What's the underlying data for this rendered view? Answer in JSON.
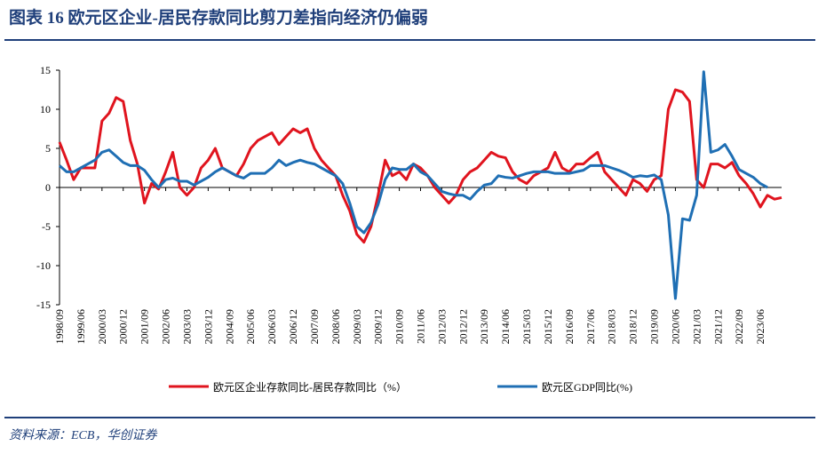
{
  "header": {
    "title": "图表 16   欧元区企业-居民存款同比剪刀差指向经济仍偏弱"
  },
  "chart_data": {
    "type": "line",
    "categories": [
      "1998/09",
      null,
      null,
      "1999/06",
      null,
      null,
      "2000/03",
      null,
      null,
      "2000/12",
      null,
      null,
      "2001/09",
      null,
      null,
      "2002/06",
      null,
      null,
      "2003/03",
      null,
      null,
      "2003/12",
      null,
      null,
      "2004/09",
      null,
      null,
      "2005/06",
      null,
      null,
      "2006/03",
      null,
      null,
      "2006/12",
      null,
      null,
      "2007/09",
      null,
      null,
      "2008/06",
      null,
      null,
      "2009/03",
      null,
      null,
      "2009/12",
      null,
      null,
      "2010/09",
      null,
      null,
      "2011/06",
      null,
      null,
      "2012/03",
      null,
      null,
      "2012/12",
      null,
      null,
      "2013/09",
      null,
      null,
      "2014/06",
      null,
      null,
      "2015/03",
      null,
      null,
      "2015/12",
      null,
      null,
      "2016/09",
      null,
      null,
      "2017/06",
      null,
      null,
      "2018/03",
      null,
      null,
      "2018/12",
      null,
      null,
      "2019/09",
      null,
      null,
      "2020/06",
      null,
      null,
      "2021/03",
      null,
      null,
      "2021/12",
      null,
      null,
      "2022/09",
      null,
      null,
      "2023/06",
      null,
      null,
      null
    ],
    "series": [
      {
        "name": "欧元区企业存款同比-居民存款同比（%）",
        "color": "#e0141e",
        "values": [
          5.8,
          3.5,
          1.0,
          2.5,
          2.5,
          2.5,
          8.5,
          9.5,
          11.5,
          11,
          6,
          3,
          -2,
          0.5,
          -0.2,
          2,
          4.5,
          0,
          -1,
          0,
          2.5,
          3.5,
          5,
          2.5,
          2,
          1.5,
          3,
          5,
          6,
          6.5,
          7,
          5.5,
          6.5,
          7.5,
          7,
          7.5,
          5,
          3.5,
          2.5,
          1.5,
          -1,
          -3,
          -6,
          -7,
          -5,
          -1,
          3.5,
          1.5,
          2,
          1,
          3,
          2.5,
          1.5,
          0,
          -1,
          -2,
          -1,
          1,
          2,
          2.5,
          3.5,
          4.5,
          4,
          3.8,
          2,
          1,
          0.5,
          1.5,
          2,
          2.5,
          4.5,
          2.5,
          2,
          3,
          3,
          3.8,
          4.5,
          2,
          1,
          0,
          -1,
          1,
          0.5,
          -0.5,
          1,
          1.5,
          10,
          12.5,
          12.2,
          11,
          1,
          0,
          3,
          3,
          2.5,
          3.2,
          1.5,
          0.5,
          -0.8,
          -2.5,
          -1,
          -1.5,
          -1.3
        ]
      },
      {
        "name": "欧元区GDP同比(%)",
        "color": "#1f6fb4",
        "values": [
          2.8,
          2.0,
          2.0,
          2.5,
          3.0,
          3.5,
          4.5,
          4.8,
          4.0,
          3.2,
          2.8,
          2.8,
          2.2,
          1.0,
          0.0,
          1.0,
          1.2,
          0.8,
          0.8,
          0.3,
          0.8,
          1.3,
          2.0,
          2.5,
          2.0,
          1.5,
          1.2,
          1.8,
          1.8,
          1.8,
          2.5,
          3.5,
          2.8,
          3.2,
          3.5,
          3.2,
          3.0,
          2.5,
          2.0,
          1.5,
          0.5,
          -2.0,
          -5.0,
          -5.8,
          -4.5,
          -2.2,
          1.0,
          2.5,
          2.3,
          2.3,
          3.0,
          2.0,
          1.5,
          0.5,
          -0.5,
          -0.8,
          -1.0,
          -1.0,
          -1.5,
          -0.5,
          0.3,
          0.5,
          1.5,
          1.3,
          1.2,
          1.5,
          1.8,
          2.0,
          2.0,
          2.0,
          1.8,
          1.8,
          1.8,
          2.0,
          2.2,
          2.8,
          2.8,
          2.8,
          2.5,
          2.2,
          1.8,
          1.3,
          1.5,
          1.4,
          1.6,
          1.0,
          -3.5,
          -14.2,
          -4.0,
          -4.2,
          -1.0,
          14.8,
          4.5,
          4.8,
          5.5,
          4.0,
          2.3,
          1.8,
          1.3,
          0.5,
          0,
          null,
          null
        ]
      }
    ],
    "ylim": [
      -15,
      15
    ],
    "yticks": [
      -15,
      -10,
      -5,
      0,
      5,
      10,
      15
    ],
    "legend": "bottom"
  },
  "footer": {
    "source": "资料来源：ECB，华创证券"
  }
}
